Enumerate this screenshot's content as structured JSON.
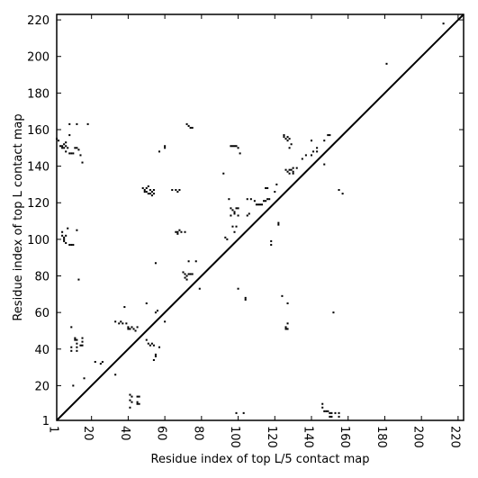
{
  "chart_data": {
    "type": "scatter",
    "title": "",
    "xlabel": "Residue index of top L/5 contact map",
    "ylabel": "Residue index of top L contact map",
    "xlim": [
      1,
      223
    ],
    "ylim": [
      1,
      223
    ],
    "x_ticks": [
      1,
      20,
      40,
      60,
      80,
      100,
      120,
      140,
      160,
      180,
      200,
      220
    ],
    "y_ticks": [
      1,
      20,
      40,
      60,
      80,
      100,
      120,
      140,
      160,
      180,
      200,
      220
    ],
    "x_tick_labels": [
      "1",
      "20",
      "40",
      "60",
      "80",
      "100",
      "120",
      "140",
      "160",
      "180",
      "200",
      "220"
    ],
    "y_tick_labels": [
      "1",
      "20",
      "40",
      "60",
      "80",
      "100",
      "120",
      "140",
      "160",
      "180",
      "200",
      "220"
    ],
    "diagonal": true,
    "grid": false,
    "color": "#000000",
    "series": [
      {
        "region": "above-diagonal (top L)",
        "points": [
          [
            1,
            155
          ],
          [
            2,
            154
          ],
          [
            3,
            151
          ],
          [
            4,
            150
          ],
          [
            4,
            151
          ],
          [
            5,
            150
          ],
          [
            5,
            152
          ],
          [
            6,
            151
          ],
          [
            6,
            148
          ],
          [
            6,
            153
          ],
          [
            7,
            150
          ],
          [
            8,
            147
          ],
          [
            8,
            157
          ],
          [
            9,
            147
          ],
          [
            10,
            147
          ],
          [
            11,
            150
          ],
          [
            12,
            150
          ],
          [
            13,
            149
          ],
          [
            14,
            146
          ],
          [
            15,
            142
          ],
          [
            18,
            163
          ],
          [
            8,
            163
          ],
          [
            12,
            163
          ],
          [
            4,
            104
          ],
          [
            4,
            102
          ],
          [
            5,
            101
          ],
          [
            5,
            99
          ],
          [
            6,
            98
          ],
          [
            7,
            106
          ],
          [
            8,
            97
          ],
          [
            9,
            97
          ],
          [
            10,
            97
          ],
          [
            12,
            105
          ],
          [
            13,
            78
          ],
          [
            5,
            100
          ],
          [
            6,
            102
          ],
          [
            60,
            151
          ],
          [
            60,
            150
          ],
          [
            57,
            148
          ],
          [
            48,
            128
          ],
          [
            49,
            127
          ],
          [
            50,
            128
          ],
          [
            50,
            126
          ],
          [
            51,
            129
          ],
          [
            51,
            125
          ],
          [
            52,
            127
          ],
          [
            52,
            125
          ],
          [
            53,
            126
          ],
          [
            53,
            124
          ],
          [
            54,
            127
          ],
          [
            54,
            125
          ],
          [
            49,
            126
          ],
          [
            64,
            127
          ],
          [
            66,
            127
          ],
          [
            67,
            126
          ],
          [
            68,
            127
          ],
          [
            66,
            104
          ],
          [
            67,
            104
          ],
          [
            67,
            103
          ],
          [
            68,
            105
          ],
          [
            69,
            104
          ],
          [
            71,
            104
          ],
          [
            72,
            163
          ],
          [
            73,
            162
          ],
          [
            74,
            161
          ],
          [
            75,
            161
          ],
          [
            70,
            82
          ],
          [
            71,
            81
          ],
          [
            71,
            79
          ],
          [
            72,
            80
          ],
          [
            72,
            78
          ],
          [
            73,
            81
          ],
          [
            74,
            81
          ],
          [
            75,
            81
          ],
          [
            73,
            88
          ],
          [
            77,
            88
          ],
          [
            79,
            73
          ],
          [
            55,
            87
          ],
          [
            96,
            151
          ],
          [
            97,
            151
          ],
          [
            98,
            151
          ],
          [
            99,
            151
          ],
          [
            100,
            150
          ],
          [
            101,
            147
          ],
          [
            92,
            136
          ],
          [
            96,
            117
          ],
          [
            97,
            116
          ],
          [
            98,
            115
          ],
          [
            99,
            117
          ],
          [
            100,
            113
          ],
          [
            96,
            113
          ],
          [
            98,
            114
          ],
          [
            100,
            117
          ],
          [
            95,
            122
          ],
          [
            97,
            107
          ],
          [
            99,
            107
          ],
          [
            98,
            104
          ],
          [
            93,
            101
          ],
          [
            94,
            100
          ],
          [
            105,
            122
          ],
          [
            107,
            122
          ],
          [
            109,
            121
          ],
          [
            110,
            119
          ],
          [
            111,
            119
          ],
          [
            112,
            119
          ],
          [
            113,
            119
          ],
          [
            114,
            121
          ],
          [
            115,
            121
          ],
          [
            116,
            122
          ],
          [
            117,
            122
          ],
          [
            115,
            128
          ],
          [
            116,
            128
          ],
          [
            120,
            126
          ],
          [
            121,
            130
          ],
          [
            122,
            109
          ],
          [
            122,
            108
          ],
          [
            118,
            99
          ],
          [
            118,
            97
          ],
          [
            106,
            114
          ],
          [
            105,
            113
          ],
          [
            125,
            157
          ],
          [
            125,
            156
          ],
          [
            126,
            155
          ],
          [
            127,
            154
          ],
          [
            127,
            156
          ],
          [
            128,
            155
          ],
          [
            128,
            150
          ],
          [
            129,
            152
          ],
          [
            126,
            138
          ],
          [
            127,
            137
          ],
          [
            128,
            138
          ],
          [
            129,
            138
          ],
          [
            130,
            137
          ],
          [
            130,
            136
          ],
          [
            130,
            139
          ],
          [
            128,
            136
          ],
          [
            132,
            139
          ],
          [
            135,
            144
          ],
          [
            137,
            146
          ],
          [
            140,
            154
          ],
          [
            140,
            146
          ],
          [
            141,
            148
          ],
          [
            143,
            150
          ],
          [
            143,
            148
          ],
          [
            147,
            154
          ],
          [
            147,
            141
          ],
          [
            149,
            157
          ],
          [
            150,
            157
          ],
          [
            127,
            65
          ],
          [
            127,
            54
          ],
          [
            126,
            52
          ],
          [
            126,
            51
          ],
          [
            127,
            51
          ],
          [
            155,
            127
          ],
          [
            157,
            125
          ],
          [
            181,
            196
          ],
          [
            212,
            218
          ],
          [
            104,
            67
          ],
          [
            104,
            68
          ],
          [
            152,
            60
          ],
          [
            100,
            73
          ],
          [
            124,
            69
          ]
        ]
      },
      {
        "region": "below-diagonal (top L/5)",
        "points": [
          [
            9,
            52
          ],
          [
            9,
            41
          ],
          [
            9,
            39
          ],
          [
            10,
            20
          ],
          [
            11,
            46
          ],
          [
            11,
            45
          ],
          [
            12,
            45
          ],
          [
            12,
            43
          ],
          [
            12,
            41
          ],
          [
            12,
            39
          ],
          [
            14,
            42
          ],
          [
            15,
            46
          ],
          [
            15,
            44
          ],
          [
            15,
            42
          ],
          [
            16,
            24
          ],
          [
            22,
            33
          ],
          [
            25,
            32
          ],
          [
            26,
            33
          ],
          [
            33,
            26
          ],
          [
            33,
            55
          ],
          [
            35,
            54
          ],
          [
            36,
            55
          ],
          [
            37,
            54
          ],
          [
            38,
            63
          ],
          [
            39,
            54
          ],
          [
            40,
            51
          ],
          [
            40,
            52
          ],
          [
            41,
            51
          ],
          [
            42,
            52
          ],
          [
            43,
            51
          ],
          [
            44,
            50
          ],
          [
            45,
            52
          ],
          [
            41,
            15
          ],
          [
            42,
            14
          ],
          [
            41,
            12
          ],
          [
            41,
            8
          ],
          [
            45,
            11
          ],
          [
            45,
            10
          ],
          [
            46,
            14
          ],
          [
            46,
            10
          ],
          [
            45,
            14
          ],
          [
            42,
            11
          ],
          [
            50,
            65
          ],
          [
            50,
            45
          ],
          [
            51,
            43
          ],
          [
            52,
            42
          ],
          [
            53,
            43
          ],
          [
            54,
            42
          ],
          [
            55,
            37
          ],
          [
            55,
            36
          ],
          [
            54,
            34
          ],
          [
            55,
            60
          ],
          [
            56,
            61
          ],
          [
            60,
            55
          ],
          [
            57,
            41
          ],
          [
            99,
            5
          ],
          [
            103,
            5
          ],
          [
            146,
            10
          ],
          [
            146,
            8
          ],
          [
            147,
            6
          ],
          [
            148,
            6
          ],
          [
            149,
            6
          ],
          [
            150,
            5
          ],
          [
            151,
            5
          ],
          [
            153,
            5
          ],
          [
            155,
            5
          ],
          [
            150,
            3
          ],
          [
            151,
            3
          ],
          [
            155,
            3
          ]
        ]
      }
    ]
  }
}
